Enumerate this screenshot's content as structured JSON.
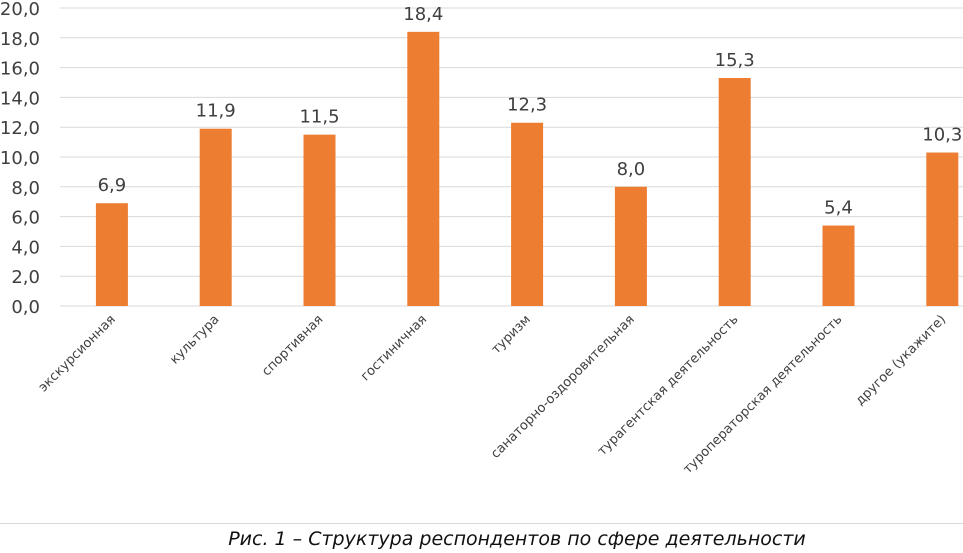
{
  "chart_data": {
    "type": "bar",
    "title": "",
    "xlabel": "",
    "ylabel": "",
    "categories": [
      "экскурсионная",
      "культура",
      "спортивная",
      "гостиничная",
      "туризм",
      "санаторно-оздоровительная",
      "турагентская деятельность",
      "туроператорская деятельность",
      "другое (укажите)"
    ],
    "values": [
      6.9,
      11.9,
      11.5,
      18.4,
      12.3,
      8.0,
      15.3,
      5.4,
      10.3
    ],
    "value_labels": [
      "6,9",
      "11,9",
      "11,5",
      "18,4",
      "12,3",
      "8,0",
      "15,3",
      "5,4",
      "10,3"
    ],
    "ylim": [
      0,
      20
    ],
    "yticks": [
      "0,0",
      "2,0",
      "4,0",
      "6,0",
      "8,0",
      "10,0",
      "12,0",
      "14,0",
      "16,0",
      "18,0",
      "20,0"
    ],
    "grid": true,
    "bar_color": "#ED7D31"
  },
  "caption": "Рис. 1 – Структура респондентов по сфере деятельности"
}
